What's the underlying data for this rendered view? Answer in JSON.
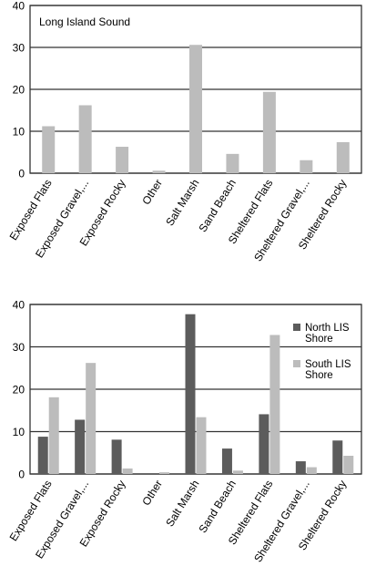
{
  "colors": {
    "light": "#bcbcbc",
    "dark": "#5c5c5c",
    "frame": "#333333",
    "grid": "#333333"
  },
  "chart_data": [
    {
      "type": "bar",
      "title": "Long Island Sound",
      "categories": [
        "Exposed Flats",
        "Exposed Gravel,...",
        "Exposed Rocky",
        "Other",
        "Salt Marsh",
        "Sand Beach",
        "Sheltered Flats",
        "Sheltered Gravel,...",
        "Sheltered Rocky"
      ],
      "series": [
        {
          "values": [
            11.2,
            16.2,
            6.3,
            0.6,
            30.6,
            4.6,
            19.4,
            3.1,
            7.4
          ]
        }
      ],
      "ylim": [
        0,
        40
      ],
      "yticks": [
        0,
        10,
        20,
        30,
        40
      ],
      "grid": true
    },
    {
      "type": "bar",
      "title": "",
      "categories": [
        "Exposed Flats",
        "Exposed Gravel,...",
        "Exposed Rocky",
        "Other",
        "Salt Marsh",
        "Sand Beach",
        "Sheltered Flats",
        "Sheltered Gravel,...",
        "Sheltered Rocky"
      ],
      "series": [
        {
          "name": "North LIS Shore",
          "values": [
            8.8,
            12.8,
            8.1,
            0,
            37.7,
            6.0,
            14.1,
            3.0,
            7.9
          ]
        },
        {
          "name": "South LIS Shore",
          "values": [
            18.1,
            26.2,
            1.3,
            0.4,
            13.4,
            0.8,
            32.8,
            1.6,
            4.3
          ]
        }
      ],
      "ylim": [
        0,
        40
      ],
      "yticks": [
        0,
        10,
        20,
        30,
        40
      ],
      "grid": true,
      "legend_position": "right"
    }
  ]
}
